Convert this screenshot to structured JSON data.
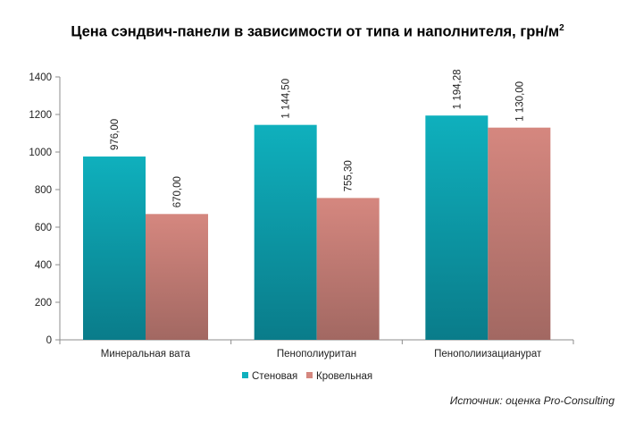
{
  "title": {
    "text": "Цена сэндвич-панели в зависимости от типа и наполнителя, грн/м",
    "superscript": "2"
  },
  "source": "Источник: оценка Pro-Consulting",
  "chart_data": {
    "type": "bar",
    "categories": [
      "Минеральная вата",
      "Пенополиуритан",
      "Пенополиизацианурат"
    ],
    "series": [
      {
        "name": "Стеновая",
        "values": [
          976.0,
          1144.5,
          1194.28
        ],
        "labels": [
          "976,00",
          "1 144,50",
          "1 194,28"
        ],
        "color_top": "#0fb0bd",
        "color_bottom": "#0a7c8a"
      },
      {
        "name": "Кровельная",
        "values": [
          670.0,
          755.3,
          1130.0
        ],
        "labels": [
          "670,00",
          "755,30",
          "1 130,00"
        ],
        "color_top": "#d5877f",
        "color_bottom": "#a26862"
      }
    ],
    "y_ticks": [
      "0",
      "200",
      "400",
      "600",
      "800",
      "1000",
      "1200",
      "1400"
    ],
    "ylim": [
      0,
      1400
    ],
    "xlabel": "",
    "ylabel": "",
    "grid": false,
    "legend_position": "bottom-center"
  }
}
